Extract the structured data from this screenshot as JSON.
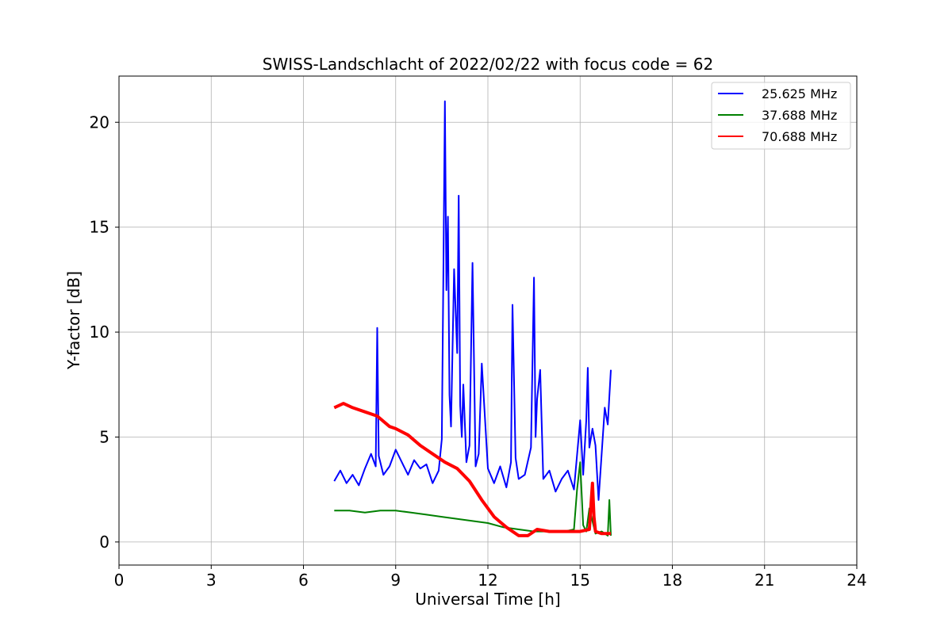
{
  "chart_data": {
    "type": "line",
    "title": "SWISS-Landschlacht of 2022/02/22 with focus code = 62",
    "xlabel": "Universal Time [h]",
    "ylabel": "Y-factor [dB]",
    "xlim": [
      0,
      24
    ],
    "ylim": [
      -1.1,
      22.2
    ],
    "xticks": [
      0,
      3,
      6,
      9,
      12,
      15,
      18,
      21,
      24
    ],
    "yticks": [
      0,
      5,
      10,
      15,
      20
    ],
    "grid": true,
    "legend_position": "top-right",
    "series": [
      {
        "name": "25.625 MHz",
        "color": "#0000ff",
        "x": [
          7.0,
          7.2,
          7.4,
          7.6,
          7.8,
          8.0,
          8.2,
          8.35,
          8.4,
          8.45,
          8.6,
          8.8,
          9.0,
          9.2,
          9.4,
          9.6,
          9.8,
          10.0,
          10.2,
          10.4,
          10.5,
          10.55,
          10.6,
          10.65,
          10.7,
          10.75,
          10.8,
          10.9,
          11.0,
          11.05,
          11.1,
          11.15,
          11.2,
          11.3,
          11.4,
          11.5,
          11.6,
          11.7,
          11.8,
          12.0,
          12.2,
          12.4,
          12.6,
          12.75,
          12.8,
          12.9,
          13.0,
          13.2,
          13.4,
          13.5,
          13.55,
          13.6,
          13.7,
          13.8,
          14.0,
          14.2,
          14.4,
          14.6,
          14.8,
          15.0,
          15.1,
          15.2,
          15.25,
          15.3,
          15.4,
          15.5,
          15.6,
          15.7,
          15.8,
          15.9,
          16.0
        ],
        "y": [
          2.9,
          3.4,
          2.8,
          3.2,
          2.7,
          3.5,
          4.2,
          3.6,
          10.2,
          4.1,
          3.2,
          3.6,
          4.4,
          3.8,
          3.2,
          3.9,
          3.5,
          3.7,
          2.8,
          3.4,
          4.9,
          12.5,
          21.0,
          12.0,
          15.5,
          7.0,
          5.5,
          13.0,
          9.0,
          16.5,
          6.5,
          5.0,
          7.5,
          3.8,
          4.6,
          13.3,
          3.6,
          4.2,
          8.5,
          3.5,
          2.8,
          3.6,
          2.6,
          3.8,
          11.3,
          4.0,
          3.0,
          3.2,
          4.5,
          12.6,
          5.0,
          6.8,
          8.2,
          3.0,
          3.4,
          2.4,
          3.0,
          3.4,
          2.5,
          5.8,
          3.2,
          5.8,
          8.3,
          4.5,
          5.4,
          4.6,
          2.0,
          4.2,
          6.4,
          5.6,
          8.2
        ]
      },
      {
        "name": "37.688 MHz",
        "color": "#008000",
        "x": [
          7.0,
          7.5,
          8.0,
          8.5,
          9.0,
          9.5,
          10.0,
          10.5,
          11.0,
          11.5,
          12.0,
          12.5,
          13.0,
          13.5,
          14.0,
          14.5,
          14.8,
          14.9,
          15.0,
          15.1,
          15.2,
          15.3,
          15.5,
          15.7,
          15.9,
          15.95,
          16.0
        ],
        "y": [
          1.5,
          1.5,
          1.4,
          1.5,
          1.5,
          1.4,
          1.3,
          1.2,
          1.1,
          1.0,
          0.9,
          0.7,
          0.6,
          0.5,
          0.5,
          0.5,
          0.6,
          2.5,
          3.8,
          0.8,
          0.5,
          1.6,
          0.4,
          0.5,
          0.3,
          2.0,
          0.3
        ]
      },
      {
        "name": "70.688 MHz",
        "color": "#ff0000",
        "x": [
          7.0,
          7.3,
          7.6,
          8.0,
          8.4,
          8.8,
          9.0,
          9.4,
          9.8,
          10.2,
          10.6,
          11.0,
          11.4,
          11.8,
          12.2,
          12.6,
          13.0,
          13.3,
          13.6,
          14.0,
          14.5,
          15.0,
          15.3,
          15.4,
          15.45,
          15.5,
          15.7,
          16.0
        ],
        "y": [
          6.4,
          6.6,
          6.4,
          6.2,
          6.0,
          5.5,
          5.4,
          5.1,
          4.6,
          4.2,
          3.8,
          3.5,
          2.9,
          2.0,
          1.2,
          0.7,
          0.3,
          0.3,
          0.6,
          0.5,
          0.5,
          0.5,
          0.6,
          2.8,
          1.2,
          0.5,
          0.4,
          0.4
        ]
      }
    ]
  }
}
